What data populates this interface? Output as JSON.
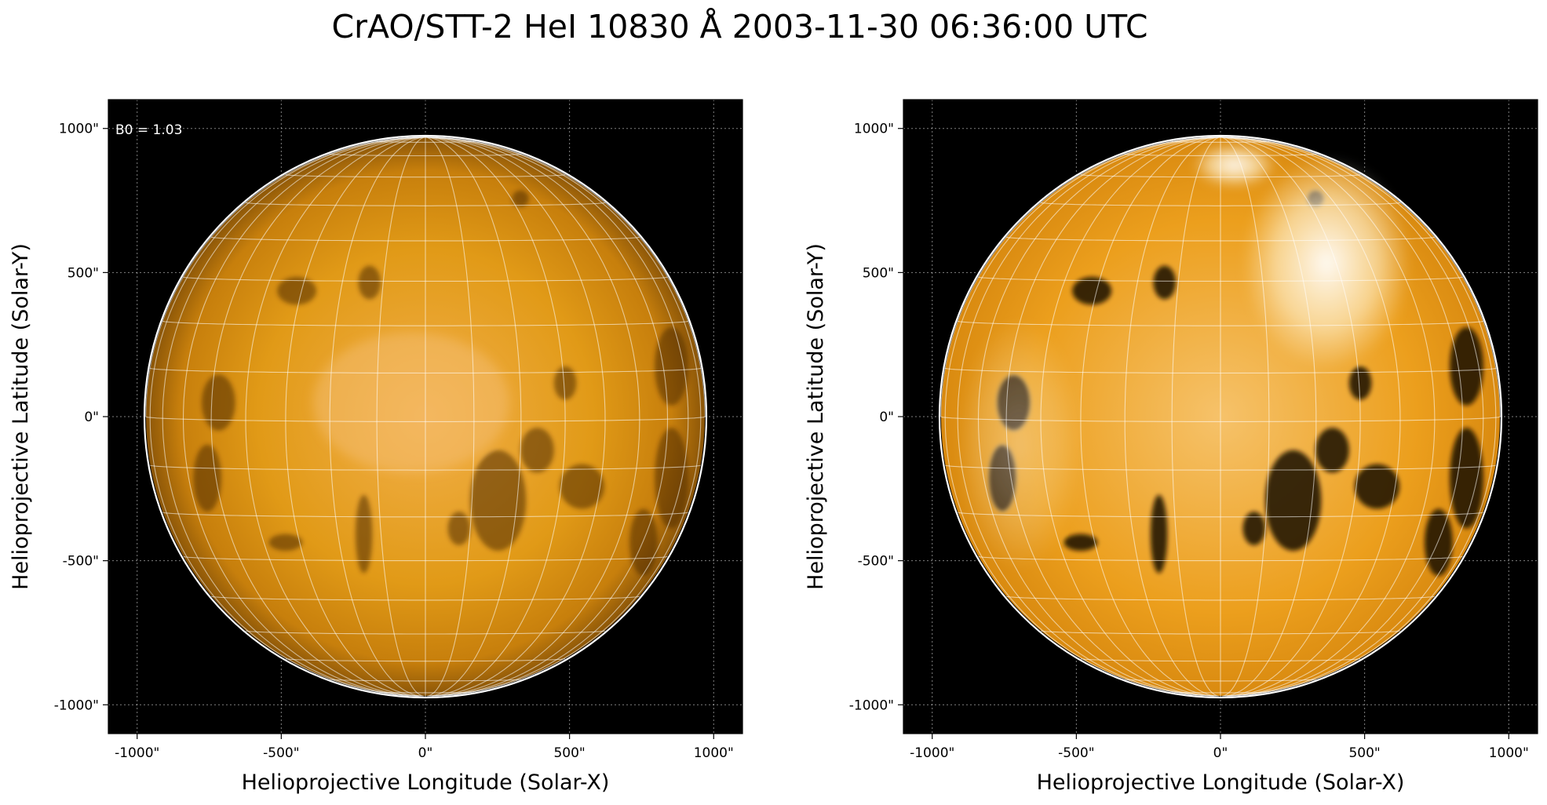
{
  "title": "CrAO/STT-2 HeI 10830 Å 2003-11-30 06:36:00 UTC",
  "disk_color": "#e19a17",
  "limb_color": "#ffffff",
  "background_color": "#000000",
  "panels": [
    {
      "name": "left",
      "annotation": "B0 = 1.03",
      "xlabel": "Helioprojective Longitude (Solar-X)",
      "ylabel": "Helioprojective Latitude (Solar-Y)",
      "xticks": [
        "-1000\"",
        "-500\"",
        "0\"",
        "500\"",
        "1000\""
      ],
      "yticks": [
        "1000\"",
        "500\"",
        "0\"",
        "-500\"",
        "-1000\""
      ],
      "xtick_values": [
        -1000,
        -500,
        0,
        500,
        1000
      ],
      "ytick_values": [
        1000,
        500,
        0,
        -500,
        -1000
      ],
      "range": [
        -1100,
        1100
      ],
      "solar_radius_arcsec": 970,
      "b0_deg": 1.03,
      "contrast": "normal"
    },
    {
      "name": "right",
      "annotation": "",
      "xlabel": "Helioprojective Longitude (Solar-X)",
      "ylabel": "Helioprojective Latitude (Solar-Y)",
      "xticks": [
        "-1000\"",
        "-500\"",
        "0\"",
        "500\"",
        "1000\""
      ],
      "yticks": [
        "1000\"",
        "500\"",
        "0\"",
        "-500\"",
        "-1000\""
      ],
      "xtick_values": [
        -1000,
        -500,
        0,
        500,
        1000
      ],
      "ytick_values": [
        1000,
        500,
        0,
        -500,
        -1000
      ],
      "range": [
        -1100,
        1100
      ],
      "solar_radius_arcsec": 970,
      "b0_deg": 1.03,
      "contrast": "enhanced"
    }
  ]
}
